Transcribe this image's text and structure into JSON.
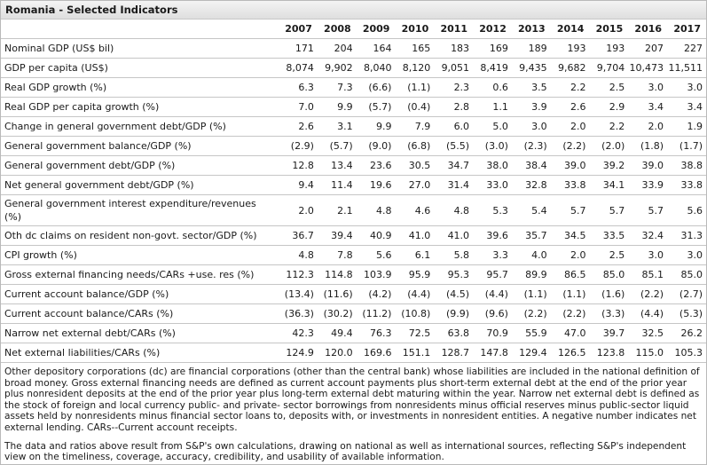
{
  "title": "Romania - Selected Indicators",
  "years": [
    "2007",
    "2008",
    "2009",
    "2010",
    "2011",
    "2012",
    "2013",
    "2014",
    "2015",
    "2016",
    "2017"
  ],
  "rows": [
    {
      "label": "Nominal GDP (US$ bil)",
      "values": [
        "171",
        "204",
        "164",
        "165",
        "183",
        "169",
        "189",
        "193",
        "193",
        "207",
        "227"
      ]
    },
    {
      "label": "GDP per capita (US$)",
      "values": [
        "8,074",
        "9,902",
        "8,040",
        "8,120",
        "9,051",
        "8,419",
        "9,435",
        "9,682",
        "9,704",
        "10,473",
        "11,511"
      ]
    },
    {
      "label": "Real GDP growth (%)",
      "values": [
        "6.3",
        "7.3",
        "(6.6)",
        "(1.1)",
        "2.3",
        "0.6",
        "3.5",
        "2.2",
        "2.5",
        "3.0",
        "3.0"
      ]
    },
    {
      "label": "Real GDP per capita growth (%)",
      "values": [
        "7.0",
        "9.9",
        "(5.7)",
        "(0.4)",
        "2.8",
        "1.1",
        "3.9",
        "2.6",
        "2.9",
        "3.4",
        "3.4"
      ]
    },
    {
      "label": "Change in general government debt/GDP (%)",
      "values": [
        "2.6",
        "3.1",
        "9.9",
        "7.9",
        "6.0",
        "5.0",
        "3.0",
        "2.0",
        "2.2",
        "2.0",
        "1.9"
      ]
    },
    {
      "label": "General government balance/GDP (%)",
      "values": [
        "(2.9)",
        "(5.7)",
        "(9.0)",
        "(6.8)",
        "(5.5)",
        "(3.0)",
        "(2.3)",
        "(2.2)",
        "(2.0)",
        "(1.8)",
        "(1.7)"
      ]
    },
    {
      "label": "General government debt/GDP (%)",
      "values": [
        "12.8",
        "13.4",
        "23.6",
        "30.5",
        "34.7",
        "38.0",
        "38.4",
        "39.0",
        "39.2",
        "39.0",
        "38.8"
      ]
    },
    {
      "label": "Net general government debt/GDP (%)",
      "values": [
        "9.4",
        "11.4",
        "19.6",
        "27.0",
        "31.4",
        "33.0",
        "32.8",
        "33.8",
        "34.1",
        "33.9",
        "33.8"
      ]
    },
    {
      "label": "General government interest expenditure/revenues (%)",
      "values": [
        "2.0",
        "2.1",
        "4.8",
        "4.6",
        "4.8",
        "5.3",
        "5.4",
        "5.7",
        "5.7",
        "5.7",
        "5.6"
      ],
      "tall": true
    },
    {
      "label": "Oth dc claims on resident non-govt. sector/GDP (%)",
      "values": [
        "36.7",
        "39.4",
        "40.9",
        "41.0",
        "41.0",
        "39.6",
        "35.7",
        "34.5",
        "33.5",
        "32.4",
        "31.3"
      ]
    },
    {
      "label": "CPI growth (%)",
      "values": [
        "4.8",
        "7.8",
        "5.6",
        "6.1",
        "5.8",
        "3.3",
        "4.0",
        "2.0",
        "2.5",
        "3.0",
        "3.0"
      ]
    },
    {
      "label": "Gross external financing needs/CARs +use. res (%)",
      "values": [
        "112.3",
        "114.8",
        "103.9",
        "95.9",
        "95.3",
        "95.7",
        "89.9",
        "86.5",
        "85.0",
        "85.1",
        "85.0"
      ]
    },
    {
      "label": "Current account balance/GDP (%)",
      "values": [
        "(13.4)",
        "(11.6)",
        "(4.2)",
        "(4.4)",
        "(4.5)",
        "(4.4)",
        "(1.1)",
        "(1.1)",
        "(1.6)",
        "(2.2)",
        "(2.7)"
      ]
    },
    {
      "label": "Current account balance/CARs (%)",
      "values": [
        "(36.3)",
        "(30.2)",
        "(11.2)",
        "(10.8)",
        "(9.9)",
        "(9.6)",
        "(2.2)",
        "(2.2)",
        "(3.3)",
        "(4.4)",
        "(5.3)"
      ]
    },
    {
      "label": "Narrow net external debt/CARs (%)",
      "values": [
        "42.3",
        "49.4",
        "76.3",
        "72.5",
        "63.8",
        "70.9",
        "55.9",
        "47.0",
        "39.7",
        "32.5",
        "26.2"
      ]
    },
    {
      "label": "Net external liabilities/CARs (%)",
      "values": [
        "124.9",
        "120.0",
        "169.6",
        "151.1",
        "128.7",
        "147.8",
        "129.4",
        "126.5",
        "123.8",
        "115.0",
        "105.3"
      ]
    }
  ],
  "notes": [
    "Other depository corporations (dc) are financial corporations (other than the central bank) whose liabilities are included in the national definition of broad money. Gross external financing needs are defined as current account payments plus short-term external debt at the end of the prior year plus nonresident deposits at the end of the prior year plus long-term external debt maturing within the year. Narrow net external debt is defined as the stock of foreign and local currency public- and private- sector borrowings from nonresidents minus official reserves minus public-sector liquid assets held by nonresidents minus financial sector loans to, deposits with, or investments in nonresident entities. A negative number indicates net external lending. CARs--Current account receipts.",
    "The data and ratios above result from S&P's own calculations, drawing on national as well as international sources, reflecting S&P's independent view on the timeliness, coverage, accuracy, credibility, and usability of available information."
  ]
}
